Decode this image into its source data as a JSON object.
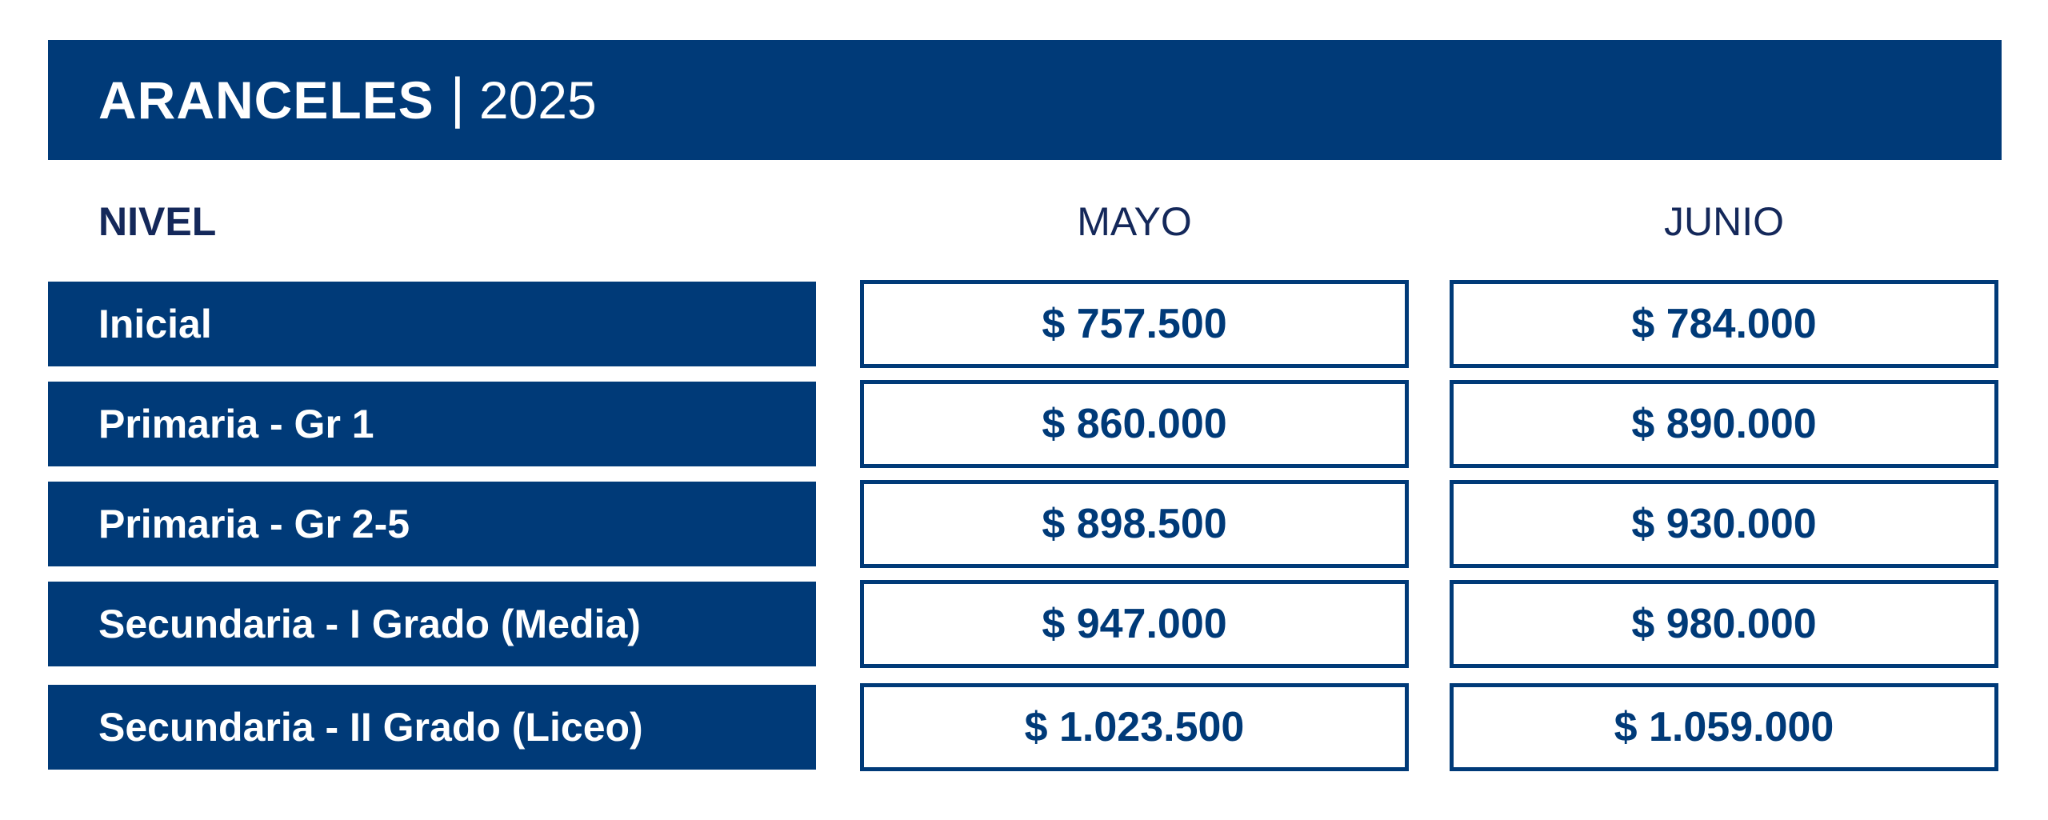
{
  "header": {
    "title": "ARANCELES",
    "separator": "|",
    "year": "2025",
    "background_color": "#003a78"
  },
  "columns": {
    "level": "NIVEL",
    "month_1": "MAYO",
    "month_2": "JUNIO"
  },
  "rows": [
    {
      "level": "Inicial",
      "mayo": "$ 757.500",
      "junio": "$ 784.000"
    },
    {
      "level": "Primaria - Gr 1",
      "mayo": "$ 860.000",
      "junio": "$ 890.000"
    },
    {
      "level": "Primaria - Gr 2-5",
      "mayo": "$ 898.500",
      "junio": "$ 930.000"
    },
    {
      "level": "Secundaria - I Grado (Media)",
      "mayo": "$ 947.000",
      "junio": "$ 980.000"
    },
    {
      "level": "Secundaria - II Grado (Liceo)",
      "mayo": "$ 1.023.500",
      "junio": "$ 1.059.000"
    }
  ],
  "colors": {
    "primary": "#003a78",
    "text_dark": "#14285a",
    "background": "#ffffff"
  }
}
